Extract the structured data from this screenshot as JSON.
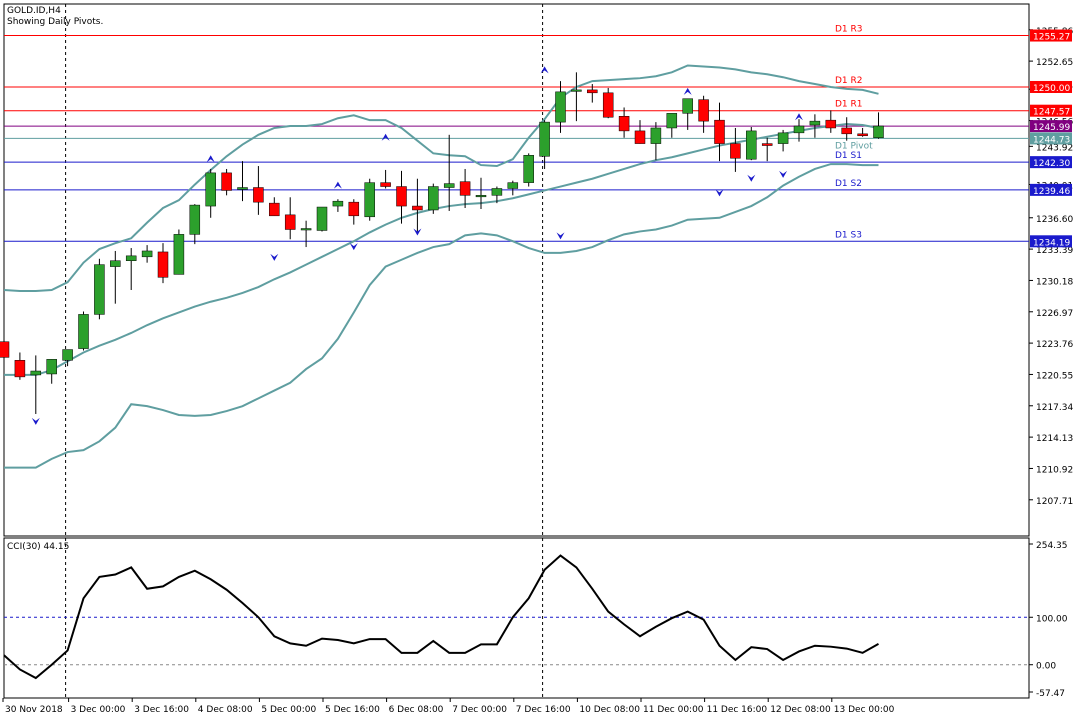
{
  "header": {
    "symbol_line": "GOLD.ID,H4",
    "subtitle": "Showing Daily Pivots."
  },
  "colors": {
    "bull": "#2ca02c",
    "bear": "#ff0000",
    "wick": "#000000",
    "band": "#5f9ea0",
    "resistance": "#ff0000",
    "support": "#1a1acc",
    "pivot_line": "#5f9ea0",
    "extra_line": "#800080",
    "cci_line": "#000000",
    "level_dotted": "#1a1acc",
    "fractal_up": "#1a1acc",
    "fractal_down": "#1a1acc",
    "pivot_label_bg": "#5f9ea0",
    "extra_label_bg": "#800080"
  },
  "price_axis_ticks": [
    "1255.86",
    "1252.65",
    "1249.77",
    "1246.56",
    "1243.92",
    "1240.01",
    "1236.60",
    "1233.39",
    "1230.18",
    "1226.97",
    "1223.76",
    "1220.55",
    "1217.34",
    "1214.13",
    "1210.92",
    "1207.71"
  ],
  "cci_axis_ticks": [
    "254.35",
    "100.00",
    "0.00",
    "-57.47"
  ],
  "time_axis_labels": [
    "30 Nov 2018",
    "3 Dec 00:00",
    "3 Dec 16:00",
    "4 Dec 08:00",
    "5 Dec 00:00",
    "5 Dec 16:00",
    "6 Dec 08:00",
    "7 Dec 00:00",
    "7 Dec 16:00",
    "10 Dec 08:00",
    "11 Dec 00:00",
    "11 Dec 16:00",
    "12 Dec 08:00",
    "13 Dec 00:00"
  ],
  "pivots": [
    {
      "name": "D1 R3",
      "price": 1255.27,
      "label": "1255.27",
      "kind": "resistance"
    },
    {
      "name": "D1 R2",
      "price": 1250.0,
      "label": "1250.00",
      "kind": "resistance"
    },
    {
      "name": "D1 R1",
      "price": 1247.57,
      "label": "1247.57",
      "kind": "resistance"
    },
    {
      "name": "",
      "price": 1245.99,
      "label": "1245.99",
      "kind": "extra"
    },
    {
      "name": "D1 Pivot",
      "price": 1244.73,
      "label": "1244.73",
      "kind": "pivot"
    },
    {
      "name": "D1 S1",
      "price": 1242.3,
      "label": "1242.30",
      "kind": "support"
    },
    {
      "name": "D1 S2",
      "price": 1239.46,
      "label": "1239.46",
      "kind": "support"
    },
    {
      "name": "D1 S3",
      "price": 1234.19,
      "label": "1234.19",
      "kind": "support"
    }
  ],
  "cci": {
    "title": "CCI(30) 44.15",
    "values": [
      20,
      -10,
      -28,
      0,
      30,
      140,
      185,
      190,
      205,
      160,
      165,
      185,
      198,
      180,
      158,
      130,
      100,
      60,
      45,
      40,
      55,
      52,
      45,
      54,
      54,
      25,
      25,
      50,
      25,
      25,
      43,
      43,
      100,
      140,
      200,
      230,
      205,
      160,
      112,
      85,
      60,
      80,
      98,
      112,
      95,
      40,
      10,
      37,
      33,
      10,
      28,
      40,
      38,
      34,
      25,
      44
    ]
  },
  "chart_data": [
    {
      "type": "candlestick",
      "title": "GOLD.ID,H4",
      "subtitle": "Showing Daily Pivots.",
      "ylim": [
        1204.0,
        1258.5
      ],
      "x_tick_labels": [
        "30 Nov 2018",
        "3 Dec 00:00",
        "3 Dec 16:00",
        "4 Dec 08:00",
        "5 Dec 00:00",
        "5 Dec 16:00",
        "6 Dec 08:00",
        "7 Dec 00:00",
        "7 Dec 16:00",
        "10 Dec 08:00",
        "11 Dec 00:00",
        "11 Dec 16:00",
        "12 Dec 08:00",
        "13 Dec 00:00"
      ],
      "ohlc": [
        [
          1223.9,
          1224.1,
          1222.0,
          1222.3
        ],
        [
          1222.0,
          1222.8,
          1220.0,
          1220.3
        ],
        [
          1220.5,
          1222.5,
          1216.5,
          1220.9
        ],
        [
          1220.6,
          1222.1,
          1219.6,
          1222.1
        ],
        [
          1222.0,
          1223.1,
          1221.4,
          1223.1
        ],
        [
          1223.2,
          1227.0,
          1223.0,
          1226.7
        ],
        [
          1226.7,
          1232.4,
          1226.2,
          1231.8
        ],
        [
          1231.6,
          1233.2,
          1227.8,
          1232.2
        ],
        [
          1232.2,
          1233.5,
          1229.2,
          1232.7
        ],
        [
          1232.6,
          1233.8,
          1232.0,
          1233.2
        ],
        [
          1233.1,
          1234.0,
          1229.9,
          1230.5
        ],
        [
          1230.8,
          1235.4,
          1230.8,
          1234.9
        ],
        [
          1234.9,
          1238.0,
          1233.9,
          1237.9
        ],
        [
          1237.8,
          1241.6,
          1236.6,
          1241.2
        ],
        [
          1241.2,
          1241.6,
          1238.9,
          1239.4
        ],
        [
          1239.5,
          1242.4,
          1238.3,
          1239.7
        ],
        [
          1239.7,
          1241.9,
          1236.9,
          1238.2
        ],
        [
          1238.1,
          1238.7,
          1236.8,
          1236.8
        ],
        [
          1236.9,
          1238.7,
          1234.4,
          1235.4
        ],
        [
          1235.4,
          1236.3,
          1233.6,
          1235.5
        ],
        [
          1235.3,
          1237.7,
          1235.2,
          1237.7
        ],
        [
          1237.8,
          1238.5,
          1237.2,
          1238.3
        ],
        [
          1238.2,
          1238.5,
          1235.9,
          1236.8
        ],
        [
          1236.7,
          1240.6,
          1236.3,
          1240.2
        ],
        [
          1240.2,
          1241.5,
          1239.6,
          1239.8
        ],
        [
          1239.8,
          1241.4,
          1236.0,
          1237.8
        ],
        [
          1237.8,
          1240.6,
          1235.2,
          1237.4
        ],
        [
          1237.4,
          1240.1,
          1237.0,
          1239.8
        ],
        [
          1239.7,
          1245.1,
          1237.3,
          1240.1
        ],
        [
          1240.3,
          1241.6,
          1237.6,
          1238.9
        ],
        [
          1238.8,
          1240.7,
          1237.5,
          1238.9
        ],
        [
          1238.9,
          1239.8,
          1238.1,
          1239.6
        ],
        [
          1239.6,
          1240.4,
          1238.9,
          1240.2
        ],
        [
          1240.2,
          1243.2,
          1239.8,
          1243.0
        ],
        [
          1242.9,
          1246.6,
          1241.6,
          1246.4
        ],
        [
          1246.4,
          1250.6,
          1245.3,
          1249.5
        ],
        [
          1249.6,
          1251.5,
          1246.5,
          1249.7
        ],
        [
          1249.7,
          1250.3,
          1248.4,
          1249.4
        ],
        [
          1249.4,
          1249.9,
          1246.8,
          1246.9
        ],
        [
          1247.0,
          1247.9,
          1244.8,
          1245.5
        ],
        [
          1245.5,
          1246.6,
          1244.2,
          1244.2
        ],
        [
          1244.2,
          1246.4,
          1242.5,
          1245.8
        ],
        [
          1245.8,
          1247.0,
          1244.8,
          1247.3
        ],
        [
          1247.3,
          1248.7,
          1245.6,
          1248.8
        ],
        [
          1248.7,
          1249.1,
          1245.3,
          1246.5
        ],
        [
          1246.6,
          1248.4,
          1242.4,
          1244.2
        ],
        [
          1244.2,
          1245.8,
          1241.3,
          1242.7
        ],
        [
          1242.6,
          1245.9,
          1242.5,
          1245.5
        ],
        [
          1244.2,
          1244.8,
          1242.4,
          1244.0
        ],
        [
          1244.2,
          1245.6,
          1243.4,
          1245.3
        ],
        [
          1245.3,
          1246.7,
          1244.4,
          1246.0
        ],
        [
          1246.1,
          1247.2,
          1244.8,
          1246.5
        ],
        [
          1246.6,
          1247.6,
          1245.3,
          1245.8
        ],
        [
          1245.8,
          1246.9,
          1244.5,
          1245.2
        ],
        [
          1245.2,
          1245.8,
          1244.9,
          1245.0
        ],
        [
          1244.8,
          1247.4,
          1244.7,
          1246.0
        ]
      ],
      "bollinger": {
        "upper": [
          1229.2,
          1229.1,
          1229.1,
          1229.2,
          1230.0,
          1232.0,
          1233.4,
          1234.0,
          1234.5,
          1236.1,
          1237.6,
          1238.4,
          1240.0,
          1241.5,
          1242.9,
          1244.1,
          1245.1,
          1245.8,
          1246.0,
          1246.0,
          1246.2,
          1246.8,
          1247.1,
          1246.6,
          1246.6,
          1245.8,
          1244.5,
          1243.2,
          1243.0,
          1242.9,
          1242.0,
          1241.9,
          1242.6,
          1244.8,
          1246.7,
          1248.9,
          1250.0,
          1250.6,
          1250.7,
          1250.8,
          1250.9,
          1251.1,
          1251.5,
          1252.2,
          1252.1,
          1252.0,
          1251.8,
          1251.5,
          1251.3,
          1251.0,
          1250.6,
          1250.3,
          1250.0,
          1249.8,
          1249.7,
          1249.3
        ],
        "middle": [
          1220.5,
          1220.5,
          1220.5,
          1221.0,
          1221.9,
          1222.8,
          1223.5,
          1224.1,
          1224.8,
          1225.6,
          1226.3,
          1226.9,
          1227.5,
          1228.0,
          1228.4,
          1228.9,
          1229.5,
          1230.3,
          1231.0,
          1231.8,
          1232.6,
          1233.4,
          1234.2,
          1235.1,
          1235.9,
          1236.6,
          1237.1,
          1237.5,
          1237.8,
          1238.0,
          1238.1,
          1238.3,
          1238.6,
          1239.0,
          1239.4,
          1239.8,
          1240.2,
          1240.6,
          1241.1,
          1241.6,
          1242.1,
          1242.5,
          1242.8,
          1243.2,
          1243.6,
          1244.0,
          1244.3,
          1244.6,
          1244.9,
          1245.2,
          1245.5,
          1245.8,
          1246.0,
          1246.2,
          1246.1,
          1245.8
        ],
        "lower": [
          1211.0,
          1211.0,
          1211.0,
          1211.9,
          1212.6,
          1212.8,
          1213.7,
          1215.1,
          1217.5,
          1217.3,
          1216.9,
          1216.4,
          1216.3,
          1216.4,
          1216.8,
          1217.3,
          1218.1,
          1218.9,
          1219.7,
          1221.1,
          1222.2,
          1224.2,
          1226.9,
          1229.7,
          1231.6,
          1232.3,
          1233.0,
          1233.6,
          1233.9,
          1234.8,
          1235.0,
          1234.8,
          1234.2,
          1233.5,
          1233.0,
          1233.0,
          1233.2,
          1233.6,
          1234.3,
          1234.9,
          1235.2,
          1235.4,
          1235.8,
          1236.4,
          1236.5,
          1236.6,
          1237.2,
          1237.8,
          1238.7,
          1239.9,
          1240.8,
          1241.6,
          1242.1,
          1242.1,
          1242.0,
          1242.0
        ]
      },
      "fractals_up": [
        [
          13,
          1242.6
        ],
        [
          21,
          1239.9
        ],
        [
          24,
          1244.8
        ],
        [
          34,
          1251.7
        ],
        [
          43,
          1249.5
        ],
        [
          50,
          1246.9
        ]
      ],
      "fractals_down": [
        [
          2,
          1215.8
        ],
        [
          17,
          1232.6
        ],
        [
          22,
          1233.7
        ],
        [
          26,
          1235.2
        ],
        [
          35,
          1234.8
        ],
        [
          45,
          1239.2
        ],
        [
          47,
          1240.7
        ],
        [
          49,
          1241.1
        ]
      ]
    },
    {
      "type": "line",
      "title": "CCI(30) 44.15",
      "ylim": [
        -57.47,
        254.35
      ],
      "levels": [
        100.0,
        0.0
      ],
      "series": [
        {
          "values": [
            20,
            -10,
            -28,
            0,
            30,
            140,
            185,
            190,
            205,
            160,
            165,
            185,
            198,
            180,
            158,
            130,
            100,
            60,
            45,
            40,
            55,
            52,
            45,
            54,
            54,
            25,
            25,
            50,
            25,
            25,
            43,
            43,
            100,
            140,
            200,
            230,
            205,
            160,
            112,
            85,
            60,
            80,
            98,
            112,
            95,
            40,
            10,
            37,
            33,
            10,
            28,
            40,
            38,
            34,
            25,
            44
          ]
        }
      ]
    }
  ]
}
